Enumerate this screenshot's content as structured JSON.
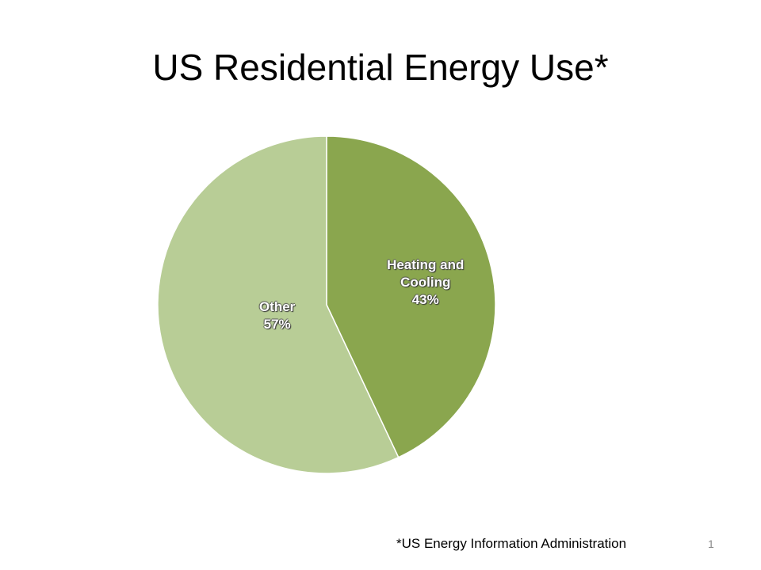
{
  "chart_data": {
    "type": "pie",
    "title": "US Residential Energy Use*",
    "categories": [
      "Heating and Cooling",
      "Other"
    ],
    "values": [
      43,
      57
    ],
    "value_labels": [
      "43%",
      "57%"
    ],
    "colors": [
      "#8aa64e",
      "#b8cd96"
    ]
  },
  "footnote": "*US Energy Information Administration",
  "slide_number": "1"
}
